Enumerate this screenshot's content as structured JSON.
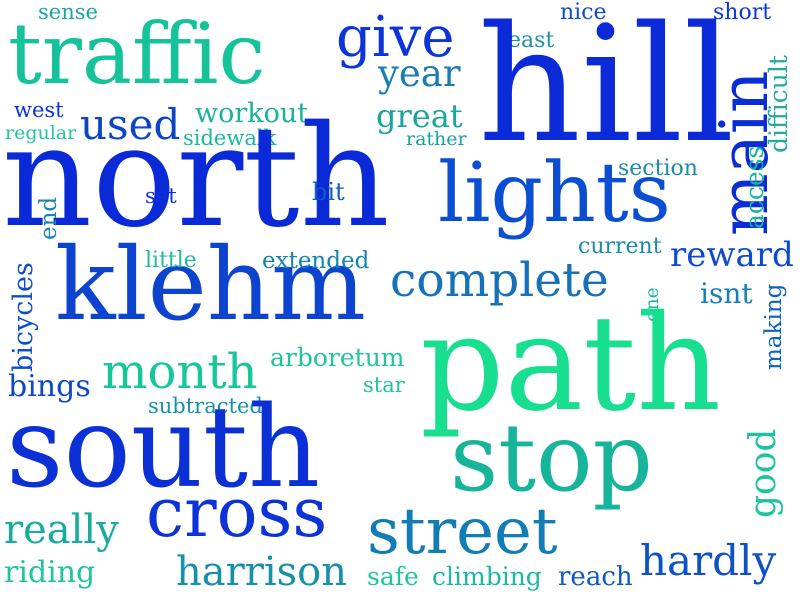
{
  "words": [
    {
      "text": "sense",
      "color": "#1aa6a1"
    },
    {
      "text": "nice",
      "color": "#0f4bd0"
    },
    {
      "text": "short",
      "color": "#0c36d8"
    },
    {
      "text": "traffic",
      "color": "#15c39a"
    },
    {
      "text": "give",
      "color": "#0b34da"
    },
    {
      "text": "east",
      "color": "#1a92ab"
    },
    {
      "text": "hill",
      "color": "#0b2ad8"
    },
    {
      "text": "year",
      "color": "#1a7cb4"
    },
    {
      "text": "main",
      "color": "#0a2ed6"
    },
    {
      "text": "access",
      "color": "#14b49a"
    },
    {
      "text": "difficult",
      "color": "#23ab9b"
    },
    {
      "text": "west",
      "color": "#0b33d6"
    },
    {
      "text": "workout",
      "color": "#17b39c"
    },
    {
      "text": "great",
      "color": "#17a69c"
    },
    {
      "text": "used",
      "color": "#0b45c8"
    },
    {
      "text": "regular",
      "color": "#21c89b"
    },
    {
      "text": "sidewalk",
      "color": "#1ab8a0"
    },
    {
      "text": "rather",
      "color": "#16a1a2"
    },
    {
      "text": "north",
      "color": "#0a2ad8"
    },
    {
      "text": "lights",
      "color": "#0b4ed2"
    },
    {
      "text": "section",
      "color": "#1a8aae"
    },
    {
      "text": "set",
      "color": "#0b30d8"
    },
    {
      "text": "bit",
      "color": "#0d5bc9"
    },
    {
      "text": "end",
      "color": "#1c86b0"
    },
    {
      "text": "current",
      "color": "#1a8bae"
    },
    {
      "text": "reward",
      "color": "#0c4bd0"
    },
    {
      "text": "klehm",
      "color": "#0c44cf"
    },
    {
      "text": "little",
      "color": "#22b8a2"
    },
    {
      "text": "extended",
      "color": "#1284b0"
    },
    {
      "text": "complete",
      "color": "#1671b8"
    },
    {
      "text": "bicycles",
      "color": "#0d4ccc"
    },
    {
      "text": "isnt",
      "color": "#1380b6"
    },
    {
      "text": "one",
      "color": "#1eb6a6"
    },
    {
      "text": "making",
      "color": "#0d64c0"
    },
    {
      "text": "path",
      "color": "#18de90"
    },
    {
      "text": "month",
      "color": "#17c79a"
    },
    {
      "text": "arboretum",
      "color": "#1fc69d"
    },
    {
      "text": "bings",
      "color": "#0d47cc"
    },
    {
      "text": "star",
      "color": "#20c3a0"
    },
    {
      "text": "subtracted",
      "color": "#1492a8"
    },
    {
      "text": "south",
      "color": "#0b30d6"
    },
    {
      "text": "stop",
      "color": "#16b49a"
    },
    {
      "text": "good",
      "color": "#1ac49c"
    },
    {
      "text": "cross",
      "color": "#0c33d8"
    },
    {
      "text": "really",
      "color": "#1aaba0"
    },
    {
      "text": "street",
      "color": "#127cb4"
    },
    {
      "text": "hardly",
      "color": "#0d52c8"
    },
    {
      "text": "riding",
      "color": "#1fc69d"
    },
    {
      "text": "harrison",
      "color": "#1890aa"
    },
    {
      "text": "safe",
      "color": "#1fc69d"
    },
    {
      "text": "climbing",
      "color": "#1ab9a2"
    },
    {
      "text": "reach",
      "color": "#0d58c4"
    }
  ]
}
